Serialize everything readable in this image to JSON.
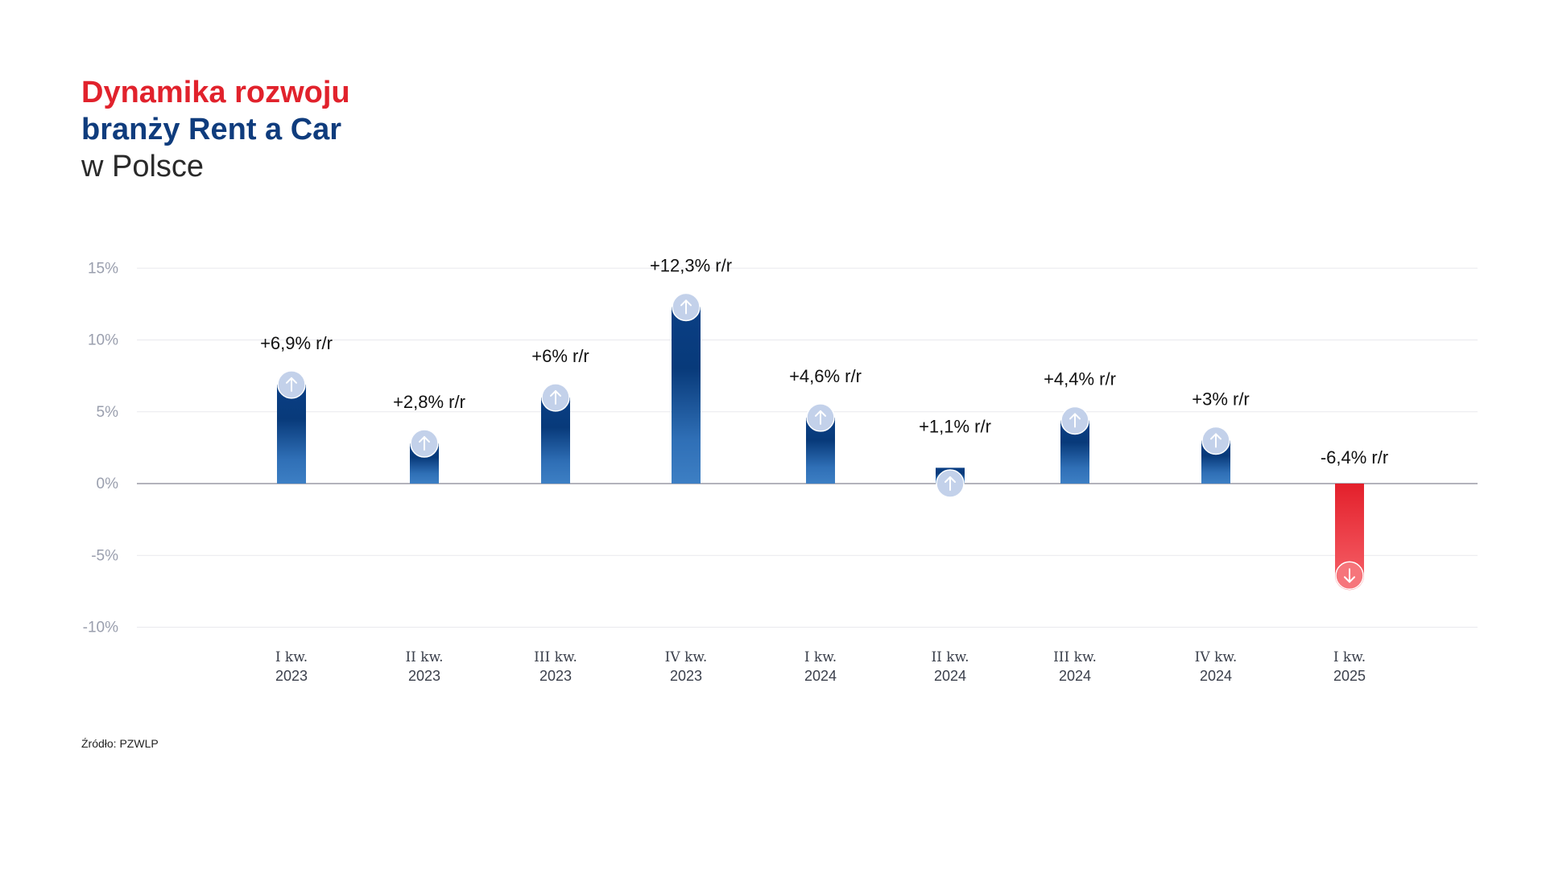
{
  "title": {
    "line1": "Dynamika rozwoju",
    "line2": "branży Rent a Car",
    "line3": "w Polsce"
  },
  "source": "Źródło: PZWLP",
  "colors": {
    "accent_red": "#e1222c",
    "accent_blue": "#0f3c7d",
    "bar_blue_light": "#3d7fc4",
    "bar_blue_dark": "#083a7a",
    "bar_red": "#ee3a43",
    "grid": "#e9e9ee",
    "axis": "#9a9aa6",
    "tick_text": "#9a9fae"
  },
  "chart_data": {
    "type": "bar",
    "title": "Dynamika rozwoju branży Rent a Car w Polsce",
    "xlabel": "",
    "ylabel": "",
    "ylim": [
      -10,
      15
    ],
    "yticks": [
      15,
      10,
      5,
      0,
      -5,
      -10
    ],
    "ytick_labels": [
      "15%",
      "10%",
      "5%",
      "0%",
      "-5%",
      "-10%"
    ],
    "grid": true,
    "categories": [
      [
        "I kw.",
        "2023"
      ],
      [
        "II kw.",
        "2023"
      ],
      [
        "III kw.",
        "2023"
      ],
      [
        "IV kw.",
        "2023"
      ],
      [
        "I kw.",
        "2024"
      ],
      [
        "II kw.",
        "2024"
      ],
      [
        "III kw.",
        "2024"
      ],
      [
        "IV kw.",
        "2024"
      ],
      [
        "I kw.",
        "2025"
      ]
    ],
    "values": [
      6.9,
      2.8,
      6.0,
      12.3,
      4.6,
      1.1,
      4.4,
      3.0,
      -6.4
    ],
    "labels": [
      "+6,9% r/r",
      "+2,8% r/r",
      "+6% r/r",
      "+12,3% r/r",
      "+4,6% r/r",
      "+1,1% r/r",
      "+4,4% r/r",
      "+3% r/r",
      "-6,4% r/r"
    ]
  }
}
